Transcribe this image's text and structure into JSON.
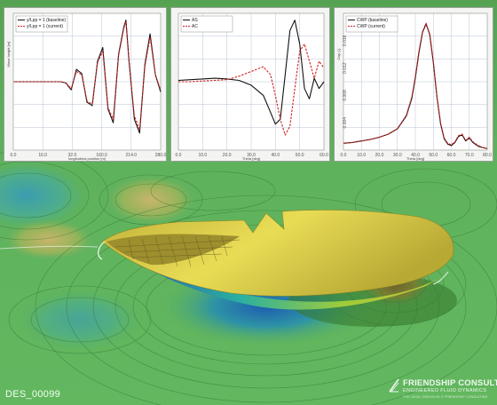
{
  "caption": "DES_00099",
  "brand": {
    "name": "FRIENDSHIP CONSULTING",
    "tagline": "ENGINEERED FLUID DYNAMICS",
    "copyright": "FSG 16103, 2009-09-09, © FRIENDSHIP CONSULTING"
  },
  "colors": {
    "baseline": "#111111",
    "current": "#d42020",
    "water_green": "#5cae5a",
    "hull_yellow": "#e8d64a"
  },
  "chart_data": [
    {
      "type": "line",
      "title": "",
      "xlabel": "longitudinal position [m]",
      "ylabel": "Wave height [m]",
      "x_ticks": [
        "0.0",
        "16.0",
        "32.0",
        "160.0",
        "214.0",
        "280.0"
      ],
      "xlim": [
        0,
        280
      ],
      "ylim": [
        -1,
        1
      ],
      "legend": "top-left",
      "grid": true,
      "series": [
        {
          "name": "y/Lpp = 1 (baseline)",
          "style": "solid",
          "x": [
            0,
            20,
            40,
            60,
            80,
            90,
            100,
            110,
            120,
            130,
            140,
            150,
            160,
            170,
            180,
            190,
            200,
            210,
            214,
            220,
            230,
            240,
            250,
            260,
            270,
            280
          ],
          "values": [
            0.0,
            0.0,
            0.0,
            0.0,
            0.0,
            0.0,
            -0.02,
            -0.12,
            0.18,
            0.12,
            -0.3,
            -0.35,
            0.3,
            0.5,
            -0.4,
            -0.6,
            0.4,
            0.8,
            0.9,
            0.3,
            -0.55,
            -0.75,
            0.25,
            0.7,
            0.1,
            -0.15
          ]
        },
        {
          "name": "y/Lpp = 1 (current)",
          "style": "dashed",
          "x": [
            0,
            20,
            40,
            60,
            80,
            90,
            100,
            110,
            120,
            130,
            140,
            150,
            160,
            170,
            180,
            190,
            200,
            210,
            214,
            220,
            230,
            240,
            250,
            260,
            270,
            280
          ],
          "values": [
            0.0,
            0.0,
            0.0,
            0.0,
            0.0,
            0.0,
            -0.02,
            -0.1,
            0.15,
            0.1,
            -0.28,
            -0.33,
            0.28,
            0.45,
            -0.38,
            -0.55,
            0.38,
            0.78,
            0.88,
            0.28,
            -0.5,
            -0.7,
            0.22,
            0.65,
            0.1,
            -0.12
          ]
        }
      ]
    },
    {
      "type": "line",
      "title": "",
      "xlabel": "Theta [deg]",
      "ylabel": "",
      "x_ticks": [
        "0.0",
        "10.0",
        "20.0",
        "30.0",
        "40.0",
        "50.0",
        "60.0"
      ],
      "xlim": [
        0,
        60
      ],
      "ylim": [
        -1,
        1
      ],
      "legend": "top-left",
      "grid": true,
      "series": [
        {
          "name": "AS",
          "style": "solid",
          "x": [
            0,
            5,
            10,
            15,
            20,
            25,
            30,
            35,
            38,
            40,
            42,
            44,
            46,
            48,
            50,
            52,
            54,
            56,
            58,
            60
          ],
          "values": [
            0.02,
            0.03,
            0.04,
            0.05,
            0.04,
            0.02,
            -0.05,
            -0.2,
            -0.45,
            -0.62,
            -0.55,
            0.1,
            0.75,
            0.9,
            0.55,
            -0.1,
            -0.25,
            0.05,
            -0.1,
            0.0
          ]
        },
        {
          "name": "AC",
          "style": "dashed",
          "x": [
            0,
            5,
            10,
            15,
            20,
            25,
            30,
            35,
            38,
            40,
            42,
            44,
            46,
            48,
            50,
            52,
            54,
            56,
            58,
            60
          ],
          "values": [
            0.0,
            0.0,
            0.01,
            0.02,
            0.03,
            0.08,
            0.15,
            0.22,
            0.1,
            -0.2,
            -0.55,
            -0.78,
            -0.65,
            -0.1,
            0.45,
            0.55,
            0.3,
            0.05,
            0.3,
            0.2
          ]
        }
      ]
    },
    {
      "type": "line",
      "title": "",
      "xlabel": "Theta [deg]",
      "ylabel": "Cwp [-]",
      "x_ticks": [
        "0.0",
        "10.0",
        "20.0",
        "30.0",
        "40.0",
        "50.0",
        "60.0",
        "70.0",
        "80.0"
      ],
      "y_ticks": [
        "0.016",
        "0.012",
        "0.008",
        "0.004"
      ],
      "xlim": [
        0,
        80
      ],
      "ylim": [
        0,
        0.018
      ],
      "legend": "top-left",
      "grid": true,
      "series": [
        {
          "name": "CWP (baseline)",
          "style": "solid",
          "x": [
            0,
            5,
            10,
            15,
            20,
            25,
            30,
            35,
            38,
            40,
            42,
            44,
            46,
            48,
            50,
            52,
            54,
            56,
            58,
            60,
            62,
            64,
            66,
            68,
            70,
            72,
            75,
            78,
            80
          ],
          "values": [
            0.0009,
            0.001,
            0.0012,
            0.0014,
            0.0017,
            0.0021,
            0.0028,
            0.0045,
            0.0068,
            0.0095,
            0.0128,
            0.0155,
            0.0166,
            0.0152,
            0.0115,
            0.007,
            0.0035,
            0.0015,
            0.0008,
            0.0006,
            0.001,
            0.0018,
            0.002,
            0.0012,
            0.0016,
            0.001,
            0.0005,
            0.0003,
            0.0002
          ]
        },
        {
          "name": "CWP (current)",
          "style": "dashed",
          "x": [
            0,
            5,
            10,
            15,
            20,
            25,
            30,
            35,
            38,
            40,
            42,
            44,
            46,
            48,
            50,
            52,
            54,
            56,
            58,
            60,
            62,
            64,
            66,
            68,
            70,
            72,
            75,
            78,
            80
          ],
          "values": [
            0.0009,
            0.001,
            0.0012,
            0.0014,
            0.0017,
            0.0021,
            0.0028,
            0.0046,
            0.007,
            0.0097,
            0.013,
            0.0156,
            0.0167,
            0.0153,
            0.0116,
            0.0071,
            0.0036,
            0.0016,
            0.0009,
            0.0007,
            0.0011,
            0.0019,
            0.0021,
            0.0013,
            0.0017,
            0.0011,
            0.0006,
            0.0003,
            0.0002
          ]
        }
      ]
    }
  ]
}
